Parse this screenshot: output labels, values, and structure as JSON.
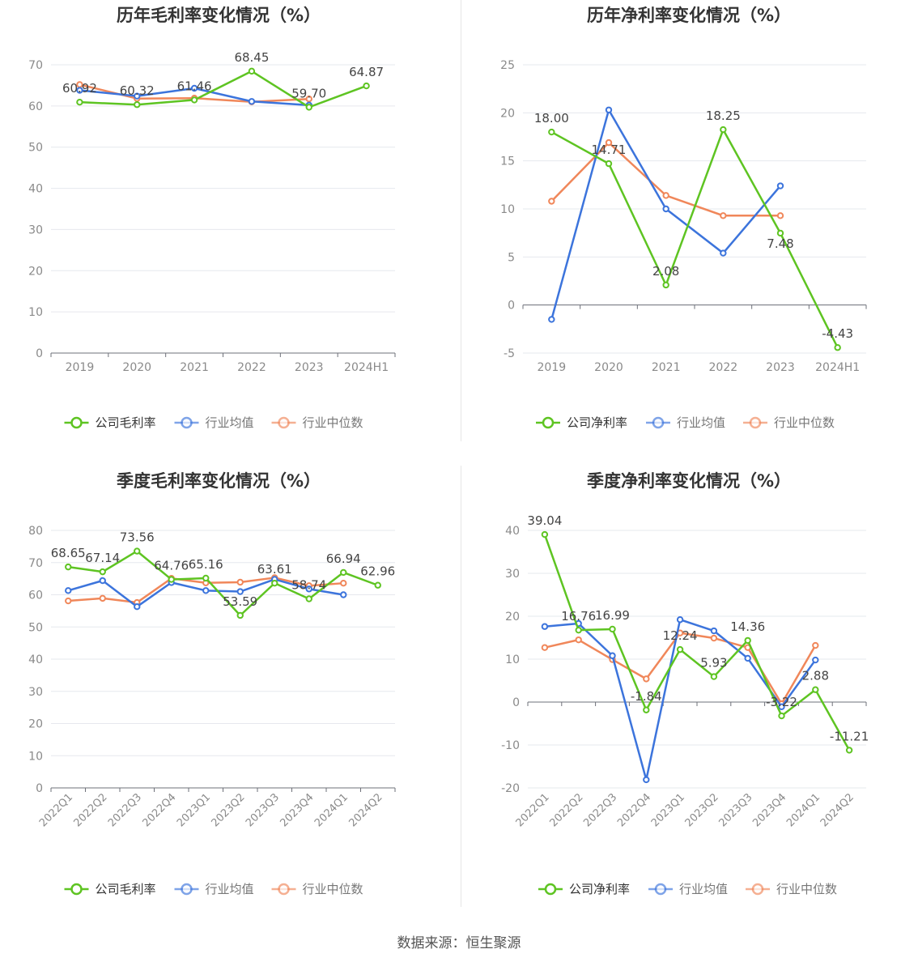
{
  "colors": {
    "company": "#5ec422",
    "industry_avg": "#3c74dc",
    "industry_median": "#f0875a",
    "grid": "#e6e8ee",
    "axis": "#6e7079",
    "tick_text": "#8a8a8a",
    "label_text": "#444444"
  },
  "legend_icon": "circle-line-icon",
  "source_text": "数据来源：恒生聚源",
  "chart_data": [
    {
      "type": "line",
      "title": "历年毛利率变化情况（%）",
      "categories": [
        "2019",
        "2020",
        "2021",
        "2022",
        "2023",
        "2024H1"
      ],
      "ylim": [
        0,
        70
      ],
      "yticks": [
        0,
        10,
        20,
        30,
        40,
        50,
        60,
        70
      ],
      "grid": true,
      "legend_position": "bottom",
      "series": [
        {
          "name": "公司毛利率",
          "color_key": "company",
          "values": [
            60.92,
            60.32,
            61.46,
            68.45,
            59.7,
            64.87
          ],
          "labels": [
            "60.92",
            "60.32",
            "61.46",
            "68.45",
            "59.70",
            "64.87"
          ]
        },
        {
          "name": "行业均值",
          "color_key": "industry_avg",
          "values": [
            63.8,
            62.4,
            64.3,
            61.1,
            60.2,
            null
          ]
        },
        {
          "name": "行业中位数",
          "color_key": "industry_median",
          "values": [
            65.2,
            61.8,
            61.9,
            61.0,
            61.7,
            null
          ]
        }
      ]
    },
    {
      "type": "line",
      "title": "历年净利率变化情况（%）",
      "categories": [
        "2019",
        "2020",
        "2021",
        "2022",
        "2023",
        "2024H1"
      ],
      "ylim": [
        -5,
        25
      ],
      "yticks": [
        -5,
        0,
        5,
        10,
        15,
        20,
        25
      ],
      "grid": true,
      "legend_position": "bottom",
      "series": [
        {
          "name": "公司净利率",
          "color_key": "company",
          "values": [
            18.0,
            14.71,
            2.08,
            18.25,
            7.48,
            -4.43
          ],
          "labels": [
            "18.00",
            "14.71",
            "2.08",
            "18.25",
            "7.48",
            "-4.43"
          ]
        },
        {
          "name": "行业均值",
          "color_key": "industry_avg",
          "values": [
            -1.5,
            20.3,
            10.0,
            5.4,
            12.4,
            null
          ]
        },
        {
          "name": "行业中位数",
          "color_key": "industry_median",
          "values": [
            10.8,
            16.9,
            11.4,
            9.3,
            9.3,
            null
          ]
        }
      ]
    },
    {
      "type": "line",
      "title": "季度毛利率变化情况（%）",
      "categories": [
        "2022Q1",
        "2022Q2",
        "2022Q3",
        "2022Q4",
        "2023Q1",
        "2023Q2",
        "2023Q3",
        "2023Q4",
        "2024Q1",
        "2024Q2"
      ],
      "ylim": [
        0,
        80
      ],
      "yticks": [
        0,
        10,
        20,
        30,
        40,
        50,
        60,
        70,
        80
      ],
      "grid": true,
      "legend_position": "bottom",
      "series": [
        {
          "name": "公司毛利率",
          "color_key": "company",
          "values": [
            68.65,
            67.14,
            73.56,
            64.76,
            65.16,
            53.59,
            63.61,
            58.74,
            66.94,
            62.96
          ],
          "labels": [
            "68.65",
            "67.14",
            "73.56",
            "64.76",
            "65.16",
            "53.59",
            "63.61",
            "58.74",
            "66.94",
            "62.96"
          ]
        },
        {
          "name": "行业均值",
          "color_key": "industry_avg",
          "values": [
            61.3,
            64.4,
            56.3,
            63.8,
            61.3,
            61.0,
            64.8,
            61.8,
            60.0,
            null
          ]
        },
        {
          "name": "行业中位数",
          "color_key": "industry_median",
          "values": [
            58.1,
            58.9,
            57.6,
            65.1,
            63.7,
            63.9,
            65.3,
            62.8,
            63.6,
            null
          ]
        }
      ]
    },
    {
      "type": "line",
      "title": "季度净利率变化情况（%）",
      "categories": [
        "2022Q1",
        "2022Q2",
        "2022Q3",
        "2022Q4",
        "2023Q1",
        "2023Q2",
        "2023Q3",
        "2023Q4",
        "2024Q1",
        "2024Q2"
      ],
      "ylim": [
        -20,
        40
      ],
      "yticks": [
        -20,
        -10,
        0,
        10,
        20,
        30,
        40
      ],
      "grid": true,
      "legend_position": "bottom",
      "series": [
        {
          "name": "公司净利率",
          "color_key": "company",
          "values": [
            39.04,
            16.76,
            16.99,
            -1.84,
            12.24,
            5.93,
            14.36,
            -3.22,
            2.88,
            -11.21
          ],
          "labels": [
            "39.04",
            "16.76",
            "16.99",
            "-1.84",
            "12.24",
            "5.93",
            "14.36",
            "-3.22",
            "2.88",
            "-11.21"
          ]
        },
        {
          "name": "行业均值",
          "color_key": "industry_avg",
          "values": [
            17.6,
            18.3,
            10.8,
            -18.1,
            19.2,
            16.6,
            10.2,
            -1.1,
            9.8,
            null
          ]
        },
        {
          "name": "行业中位数",
          "color_key": "industry_median",
          "values": [
            12.7,
            14.5,
            9.9,
            5.4,
            16.1,
            14.9,
            12.7,
            -0.4,
            13.2,
            null
          ]
        }
      ]
    }
  ]
}
